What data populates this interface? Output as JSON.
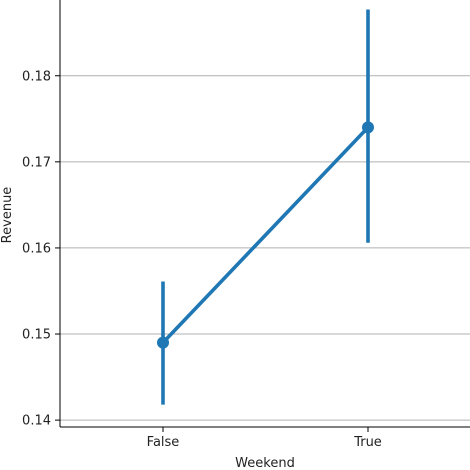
{
  "chart_data": {
    "type": "line",
    "style": "point-plot-with-error-bars",
    "xlabel": "Weekend",
    "ylabel": "Revenue",
    "categories": [
      "False",
      "True"
    ],
    "values": [
      0.149,
      0.174
    ],
    "ci_low": [
      0.1418,
      0.1606
    ],
    "ci_high": [
      0.1561,
      0.1877
    ],
    "ylim": [
      0.1392,
      0.1888
    ],
    "yticks": [
      0.14,
      0.15,
      0.16,
      0.17,
      0.18
    ],
    "ytick_labels": [
      "0.14",
      "0.15",
      "0.16",
      "0.17",
      "0.18"
    ],
    "grid": "horizontal",
    "color": "#1f77b4"
  }
}
